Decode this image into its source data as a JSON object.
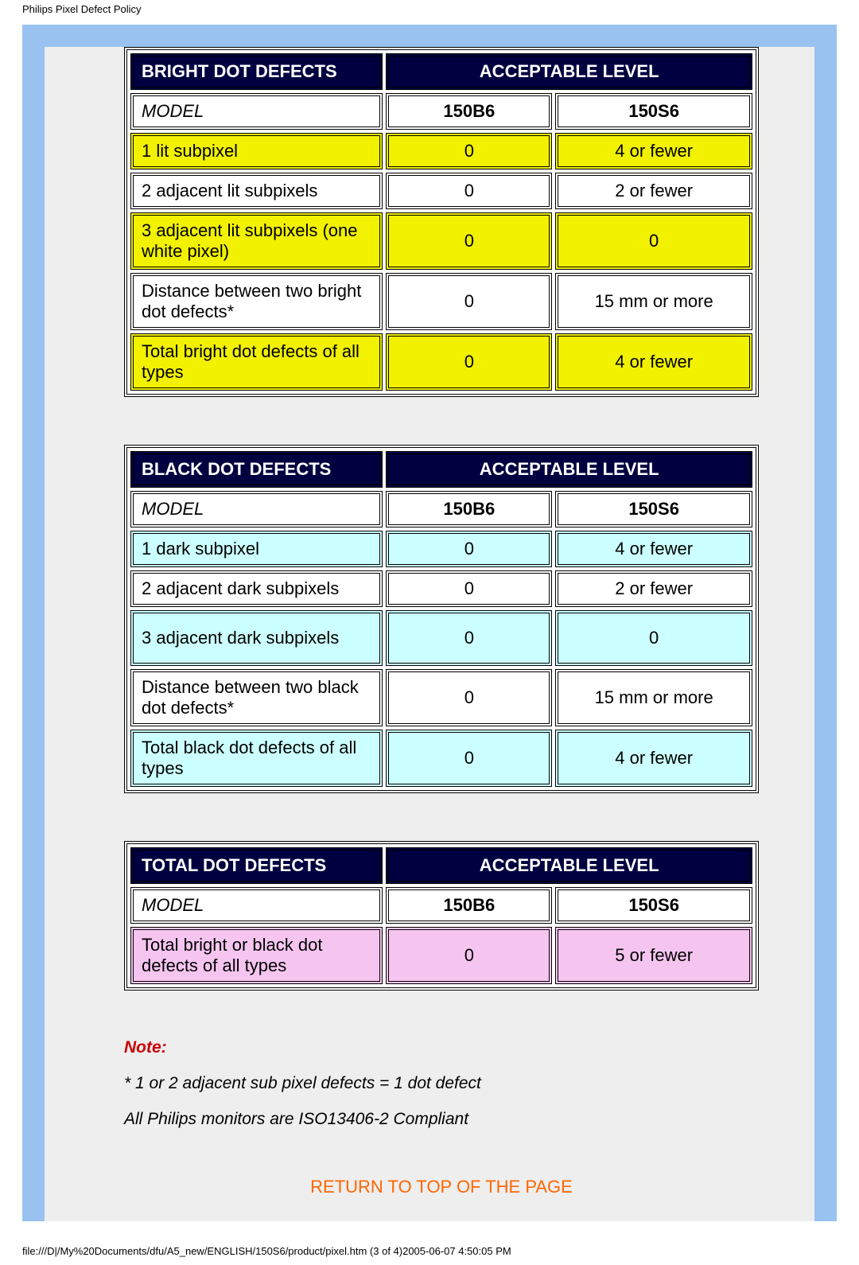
{
  "page_title": "Philips Pixel Defect Policy",
  "colors": {
    "frame_border": "#99c2f0",
    "frame_bg": "#eeeeee",
    "table_header_bg": "#000040",
    "table_header_fg": "#ffffff",
    "highlight_yellow": "#f1f100",
    "highlight_cyan": "#ccffff",
    "highlight_pink": "#f5c5f0",
    "note_red": "#cc0000",
    "link_orange": "#ff6600"
  },
  "tables": {
    "bright": {
      "header_left": "BRIGHT DOT DEFECTS",
      "header_right": "ACCEPTABLE LEVEL",
      "model_label": "MODEL",
      "models": [
        "150B6",
        "150S6"
      ],
      "highlight_color": "#f1f100",
      "col_widths": [
        "41%",
        "27%",
        "32%"
      ],
      "rows": [
        {
          "label": "1 lit subpixel",
          "v1": "0",
          "v2": "4 or fewer",
          "hl": true,
          "tall": false
        },
        {
          "label": "2 adjacent lit subpixels",
          "v1": "0",
          "v2": "2 or fewer",
          "hl": false,
          "tall": false
        },
        {
          "label": "3 adjacent lit subpixels (one white pixel)",
          "v1": "0",
          "v2": "0",
          "hl": true,
          "tall": true
        },
        {
          "label": "Distance between two bright dot defects*",
          "v1": "0",
          "v2": "15 mm or more",
          "hl": false,
          "tall": true
        },
        {
          "label": "Total bright dot defects of all types",
          "v1": "0",
          "v2": "4 or fewer",
          "hl": true,
          "tall": true
        }
      ]
    },
    "black": {
      "header_left": "BLACK DOT DEFECTS",
      "header_right": "ACCEPTABLE LEVEL",
      "model_label": "MODEL",
      "models": [
        "150B6",
        "150S6"
      ],
      "highlight_color": "#ccffff",
      "col_widths": [
        "41%",
        "27%",
        "32%"
      ],
      "rows": [
        {
          "label": "1 dark subpixel",
          "v1": "0",
          "v2": "4 or fewer",
          "hl": true,
          "tall": false
        },
        {
          "label": "2 adjacent dark subpixels",
          "v1": "0",
          "v2": "2 or fewer",
          "hl": false,
          "tall": false
        },
        {
          "label": "3 adjacent dark subpixels",
          "v1": "0",
          "v2": "0",
          "hl": true,
          "tall": true
        },
        {
          "label": "Distance between two black dot defects*",
          "v1": "0",
          "v2": "15 mm or more",
          "hl": false,
          "tall": false
        },
        {
          "label": "Total black dot defects of all types",
          "v1": "0",
          "v2": "4 or fewer",
          "hl": true,
          "tall": false
        }
      ]
    },
    "total": {
      "header_left": "TOTAL DOT DEFECTS",
      "header_right": "ACCEPTABLE LEVEL",
      "model_label": "MODEL",
      "models": [
        "150B6",
        "150S6"
      ],
      "highlight_color": "#f5c5f0",
      "col_widths": [
        "41%",
        "27%",
        "32%"
      ],
      "rows": [
        {
          "label": "Total bright or black dot defects of all types",
          "v1": "0",
          "v2": "5 or fewer",
          "hl": true,
          "tall": true
        }
      ]
    }
  },
  "notes": {
    "label": "Note:",
    "line1": "* 1 or 2 adjacent sub pixel defects = 1 dot defect",
    "line2": "All Philips monitors are ISO13406-2 Compliant"
  },
  "return_link": "RETURN TO TOP OF THE PAGE",
  "footer": "file:///D|/My%20Documents/dfu/A5_new/ENGLISH/150S6/product/pixel.htm (3 of 4)2005-06-07 4:50:05 PM"
}
